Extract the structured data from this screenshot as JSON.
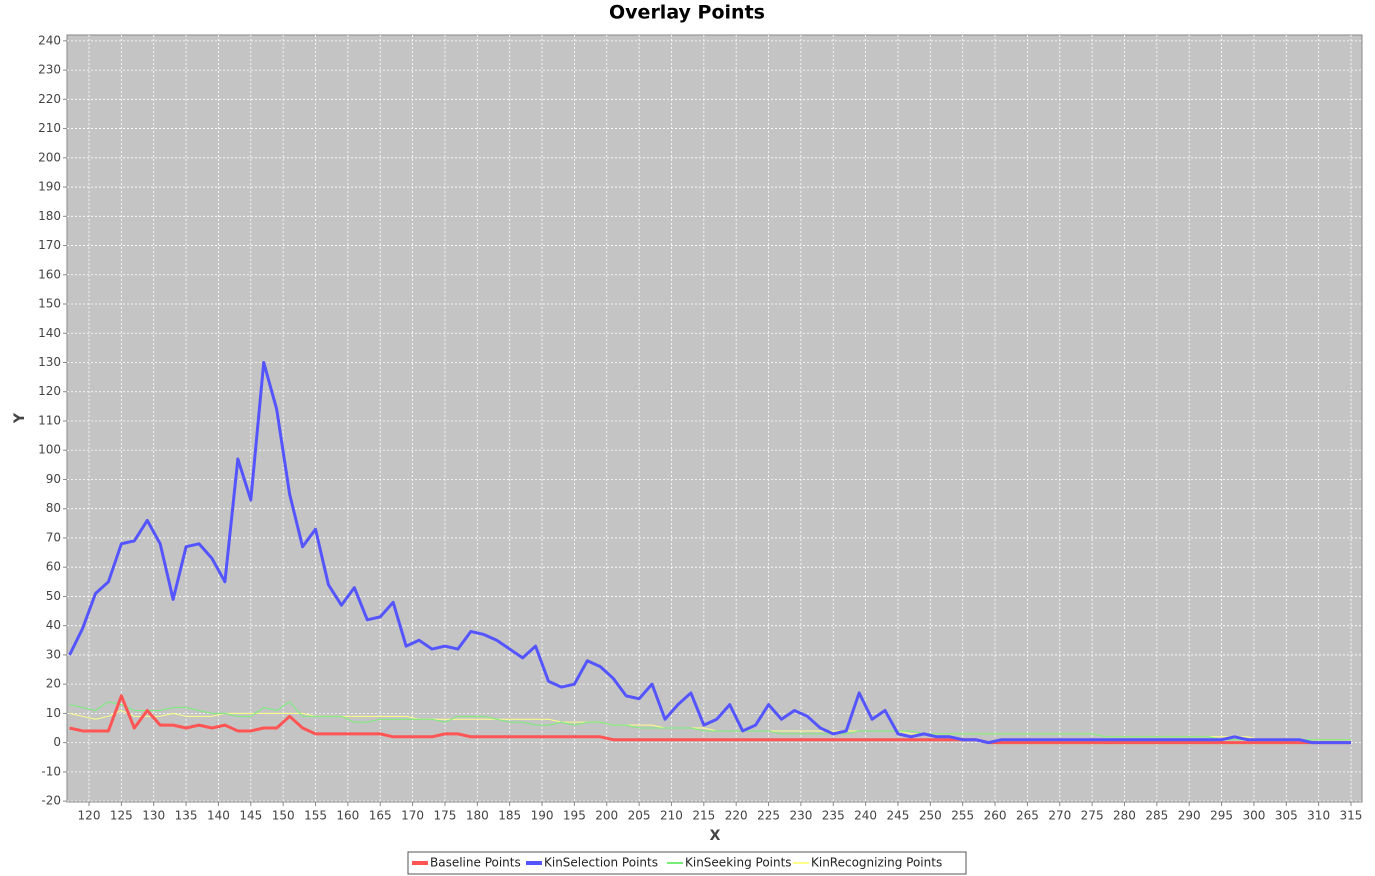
{
  "chart_data": {
    "type": "line",
    "title": "Overlay Points",
    "x_label": "X",
    "y_label": "Y",
    "x": [
      117,
      119,
      121,
      123,
      125,
      127,
      129,
      131,
      133,
      135,
      137,
      139,
      141,
      143,
      145,
      147,
      149,
      151,
      153,
      155,
      157,
      159,
      161,
      163,
      165,
      167,
      169,
      171,
      173,
      175,
      177,
      179,
      181,
      183,
      185,
      187,
      189,
      191,
      193,
      195,
      197,
      199,
      201,
      203,
      205,
      207,
      209,
      211,
      213,
      215,
      217,
      219,
      221,
      223,
      225,
      227,
      229,
      231,
      233,
      235,
      237,
      239,
      241,
      243,
      245,
      247,
      249,
      251,
      253,
      255,
      257,
      259,
      261,
      263,
      265,
      267,
      269,
      271,
      273,
      275,
      277,
      279,
      281,
      283,
      285,
      287,
      289,
      291,
      293,
      295,
      297,
      299,
      301,
      303,
      305,
      307,
      309,
      311,
      313,
      315
    ],
    "series": [
      {
        "name": "Baseline Points",
        "color": "#ff5555",
        "width": 3,
        "values": [
          5,
          4,
          4,
          4,
          16,
          5,
          11,
          6,
          6,
          5,
          6,
          5,
          6,
          4,
          4,
          5,
          5,
          9,
          5,
          3,
          3,
          3,
          3,
          3,
          3,
          2,
          2,
          2,
          2,
          3,
          3,
          2,
          2,
          2,
          2,
          2,
          2,
          2,
          2,
          2,
          2,
          2,
          1,
          1,
          1,
          1,
          1,
          1,
          1,
          1,
          1,
          1,
          1,
          1,
          1,
          1,
          1,
          1,
          1,
          1,
          1,
          1,
          1,
          1,
          1,
          1,
          1,
          1,
          1,
          1,
          1,
          0,
          0,
          0,
          0,
          0,
          0,
          0,
          0,
          0,
          0,
          0,
          0,
          0,
          0,
          0,
          0,
          0,
          0,
          0,
          0,
          0,
          0,
          0,
          0,
          0,
          0,
          0,
          0,
          0
        ]
      },
      {
        "name": "KinSelection Points",
        "color": "#5555ff",
        "width": 3,
        "values": [
          30,
          39,
          51,
          55,
          68,
          69,
          76,
          68,
          49,
          67,
          68,
          63,
          55,
          97,
          83,
          130,
          114,
          85,
          67,
          73,
          54,
          47,
          53,
          42,
          43,
          48,
          33,
          35,
          32,
          33,
          32,
          38,
          37,
          35,
          32,
          29,
          33,
          21,
          19,
          20,
          28,
          26,
          22,
          16,
          15,
          20,
          8,
          13,
          17,
          6,
          8,
          13,
          4,
          6,
          13,
          8,
          11,
          9,
          5,
          3,
          4,
          17,
          8,
          11,
          3,
          2,
          3,
          2,
          2,
          1,
          1,
          0,
          1,
          1,
          1,
          1,
          1,
          1,
          1,
          1,
          1,
          1,
          1,
          1,
          1,
          1,
          1,
          1,
          1,
          1,
          2,
          1,
          1,
          1,
          1,
          1,
          0,
          0,
          0,
          0
        ]
      },
      {
        "name": "KinSeeking Points",
        "color": "#77ee77",
        "width": 1,
        "values": [
          13,
          12,
          11,
          14,
          13,
          11,
          11,
          11,
          12,
          12,
          11,
          10,
          10,
          9,
          9,
          12,
          11,
          14,
          9,
          9,
          9,
          9,
          7,
          7,
          8,
          8,
          8,
          8,
          8,
          7,
          9,
          9,
          9,
          8,
          7,
          7,
          6,
          6,
          7,
          6,
          7,
          7,
          6,
          6,
          5,
          5,
          5,
          5,
          5,
          4,
          4,
          4,
          4,
          4,
          4,
          3,
          3,
          3,
          3,
          3,
          3,
          4,
          4,
          4,
          4,
          4,
          3,
          3,
          3,
          3,
          3,
          3,
          3,
          3,
          3,
          3,
          3,
          3,
          3,
          3,
          2,
          2,
          2,
          2,
          2,
          2,
          2,
          2,
          2,
          1,
          1,
          1,
          1,
          1,
          1,
          1,
          1,
          1,
          1,
          1
        ]
      },
      {
        "name": "KinRecognizing Points",
        "color": "#ffff88",
        "width": 1,
        "values": [
          10,
          9,
          8,
          9,
          11,
          9,
          9,
          9,
          10,
          9,
          9,
          9,
          10,
          10,
          10,
          10,
          10,
          10,
          10,
          9,
          9,
          9,
          9,
          9,
          9,
          9,
          9,
          8,
          8,
          8,
          8,
          8,
          8,
          8,
          8,
          8,
          8,
          8,
          7,
          7,
          7,
          7,
          6,
          6,
          6,
          6,
          5,
          5,
          5,
          5,
          4,
          4,
          4,
          4,
          4,
          4,
          4,
          4,
          4,
          4,
          4,
          4,
          4,
          4,
          4,
          3,
          3,
          3,
          3,
          3,
          3,
          3,
          3,
          3,
          3,
          3,
          3,
          3,
          3,
          3,
          2,
          2,
          2,
          2,
          2,
          2,
          2,
          2,
          2,
          2,
          2,
          2,
          1,
          1,
          1,
          1,
          1,
          1,
          1,
          1
        ]
      }
    ],
    "xlim": [
      116.6,
      316.7
    ],
    "ylim": [
      -20.3,
      242
    ],
    "xticks": [
      120,
      125,
      130,
      135,
      140,
      145,
      150,
      155,
      160,
      165,
      170,
      175,
      180,
      185,
      190,
      195,
      200,
      205,
      210,
      215,
      220,
      225,
      230,
      235,
      240,
      245,
      250,
      255,
      260,
      265,
      270,
      275,
      280,
      285,
      290,
      295,
      300,
      305,
      310,
      315
    ],
    "yticks": [
      -20,
      -10,
      0,
      10,
      20,
      30,
      40,
      50,
      60,
      70,
      80,
      90,
      100,
      110,
      120,
      130,
      140,
      150,
      160,
      170,
      180,
      190,
      200,
      210,
      220,
      230,
      240
    ],
    "grid": true,
    "legend": "bottom"
  }
}
